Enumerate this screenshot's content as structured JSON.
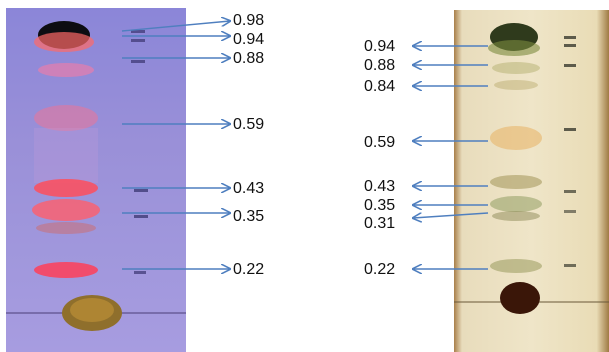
{
  "left_plate": {
    "rf_labels": [
      "0.98",
      "0.94",
      "0.88",
      "0.59",
      "0.43",
      "0.35",
      "0.22"
    ]
  },
  "right_plate": {
    "rf_labels": [
      "0.94",
      "0.88",
      "0.84",
      "0.59",
      "0.43",
      "0.35",
      "0.31",
      "0.22"
    ]
  },
  "colors": {
    "arrow": "#4f7fbf",
    "left_plate_background": "#9a90d8",
    "right_plate_background": "#efe5c8"
  },
  "image_type": "photograph of two thin-layer chromatography plates with labeled arrows"
}
